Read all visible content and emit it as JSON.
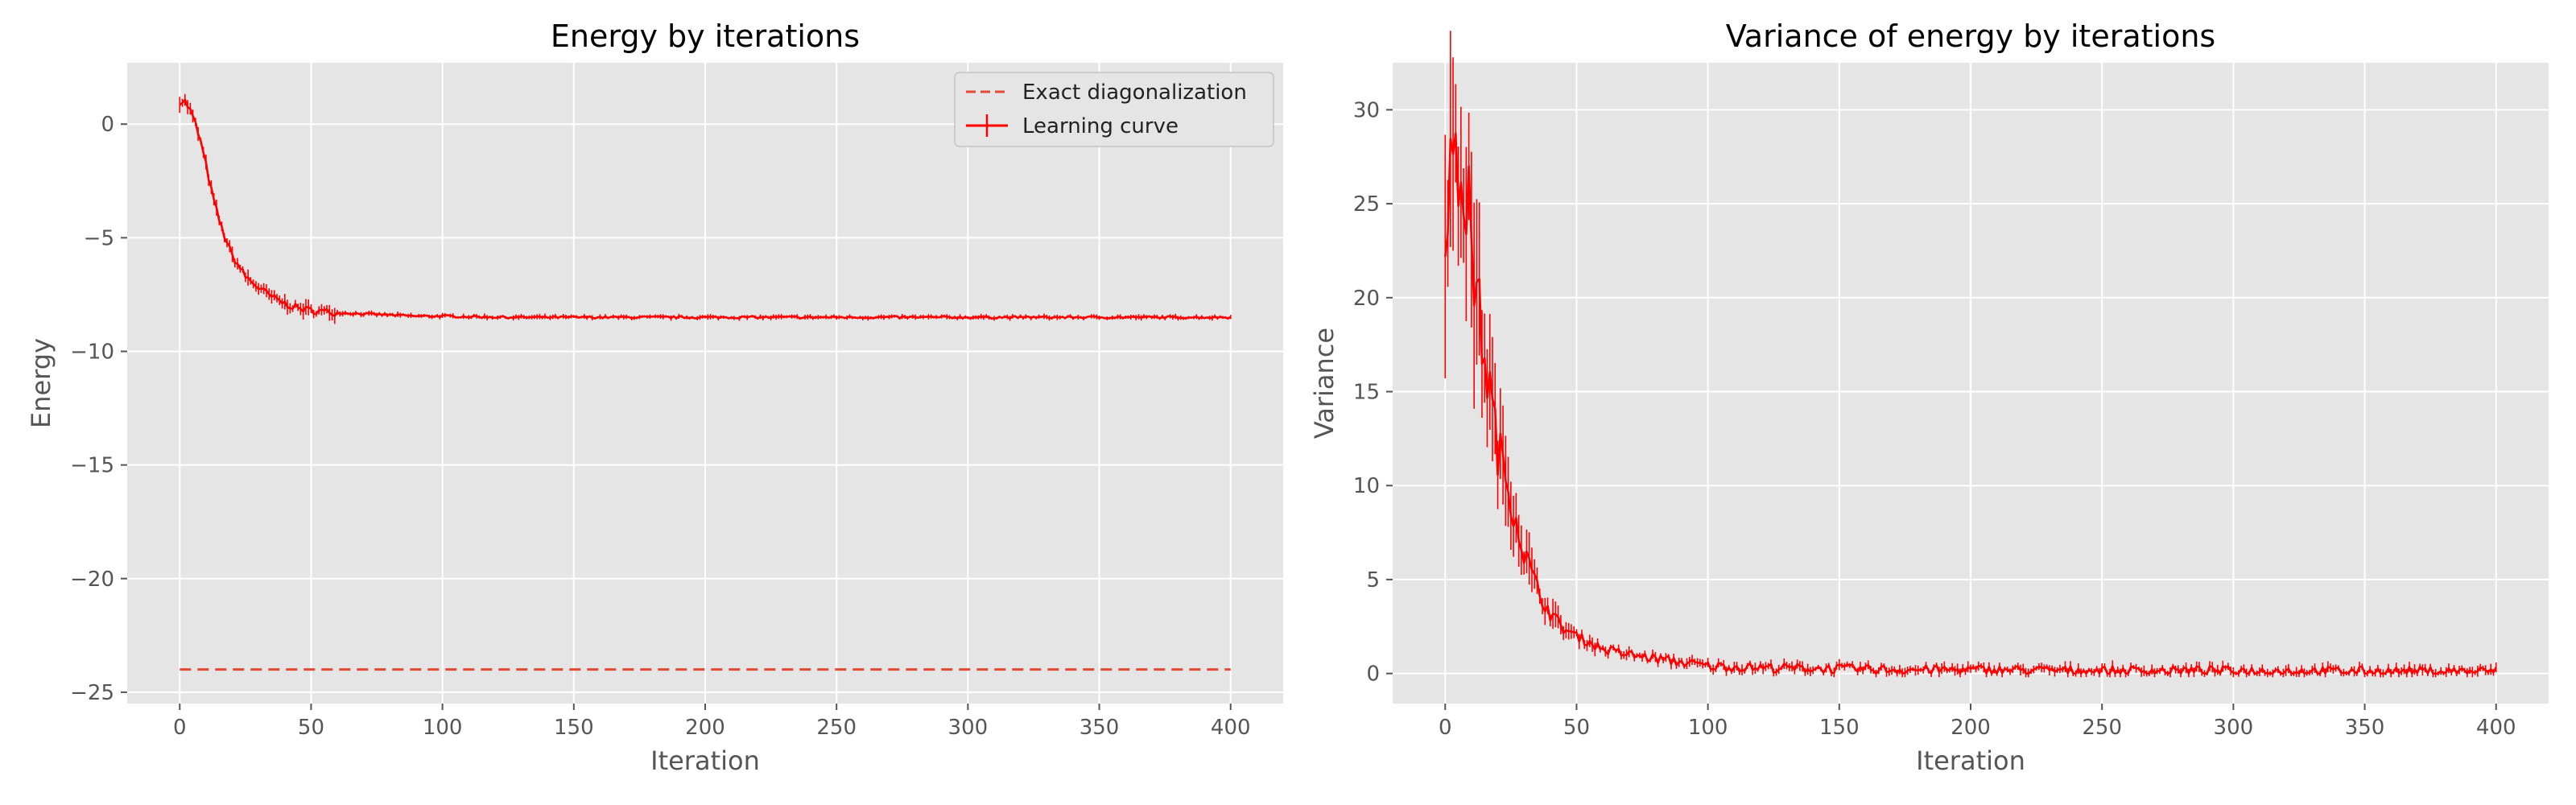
{
  "chart_data": [
    {
      "type": "line",
      "title": "Energy by iterations",
      "xlabel": "Iteration",
      "ylabel": "Energy",
      "xlim": [
        -20,
        420
      ],
      "ylim": [
        -25.5,
        2.7
      ],
      "xticks": [
        0,
        50,
        100,
        150,
        200,
        250,
        300,
        350,
        400
      ],
      "yticks": [
        0,
        -5,
        -10,
        -15,
        -20,
        -25
      ],
      "xtick_labels": [
        "0",
        "50",
        "100",
        "150",
        "200",
        "250",
        "300",
        "350",
        "400"
      ],
      "ytick_labels": [
        "0",
        "−5",
        "−10",
        "−15",
        "−20",
        "−25"
      ],
      "grid": true,
      "legend_position": "upper right",
      "series": [
        {
          "name": "Exact diagonalization",
          "style": "dashed",
          "color": "#E24A33",
          "x": [
            0,
            400
          ],
          "y": [
            -24.0,
            -24.0
          ]
        },
        {
          "name": "Learning curve",
          "style": "solid with error bars",
          "color": "#FF0000",
          "x": [
            0,
            2,
            4,
            6,
            8,
            10,
            12,
            14,
            16,
            18,
            20,
            25,
            30,
            35,
            40,
            45,
            50,
            60,
            70,
            80,
            90,
            100,
            125,
            150,
            200,
            250,
            300,
            350,
            400
          ],
          "y": [
            1.0,
            1.0,
            0.6,
            0.0,
            -0.8,
            -1.8,
            -2.9,
            -3.8,
            -4.6,
            -5.2,
            -5.8,
            -6.7,
            -7.2,
            -7.6,
            -7.9,
            -8.1,
            -8.2,
            -8.3,
            -8.35,
            -8.4,
            -8.45,
            -8.45,
            -8.5,
            -8.5,
            -8.5,
            -8.5,
            -8.5,
            -8.5,
            -8.5
          ]
        }
      ]
    },
    {
      "type": "line",
      "title": "Variance of energy by iterations",
      "xlabel": "Iteration",
      "ylabel": "Variance",
      "xlim": [
        -20,
        420
      ],
      "ylim": [
        -1.6,
        32.5
      ],
      "xticks": [
        0,
        50,
        100,
        150,
        200,
        250,
        300,
        350,
        400
      ],
      "yticks": [
        0,
        5,
        10,
        15,
        20,
        25,
        30
      ],
      "xtick_labels": [
        "0",
        "50",
        "100",
        "150",
        "200",
        "250",
        "300",
        "350",
        "400"
      ],
      "ytick_labels": [
        "0",
        "5",
        "10",
        "15",
        "20",
        "25",
        "30"
      ],
      "grid": true,
      "series": [
        {
          "style": "solid with error bars",
          "color": "#FF0000",
          "x": [
            0,
            2,
            4,
            6,
            8,
            10,
            12,
            14,
            16,
            18,
            20,
            25,
            30,
            35,
            40,
            45,
            50,
            60,
            70,
            80,
            90,
            100,
            110,
            125,
            150,
            175,
            200,
            250,
            300,
            350,
            400
          ],
          "y": [
            25,
            27,
            26,
            27,
            25.5,
            23,
            20,
            18,
            16,
            14,
            12,
            9.5,
            6.5,
            4.5,
            3.2,
            2.4,
            2.0,
            1.3,
            1.0,
            0.8,
            0.6,
            0.4,
            0.35,
            0.3,
            0.25,
            0.2,
            0.2,
            0.15,
            0.15,
            0.12,
            0.12
          ]
        }
      ]
    }
  ]
}
